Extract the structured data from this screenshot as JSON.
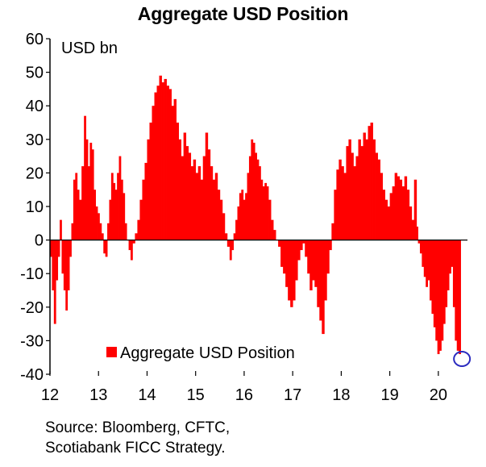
{
  "chart_data": {
    "type": "bar",
    "title": "Aggregate USD Position",
    "unit_label": "USD bn",
    "ylim": [
      -40,
      60
    ],
    "y_ticks": [
      60,
      50,
      40,
      30,
      20,
      10,
      0,
      -10,
      -20,
      -30,
      -40
    ],
    "xlim": [
      2012,
      2020.6
    ],
    "x_ticks": [
      {
        "value": 2012,
        "label": "12"
      },
      {
        "value": 2013,
        "label": "13"
      },
      {
        "value": 2014,
        "label": "14"
      },
      {
        "value": 2015,
        "label": "15"
      },
      {
        "value": 2016,
        "label": "16"
      },
      {
        "value": 2017,
        "label": "17"
      },
      {
        "value": 2018,
        "label": "18"
      },
      {
        "value": 2019,
        "label": "19"
      },
      {
        "value": 2020,
        "label": "20"
      }
    ],
    "legend": {
      "position": "bottom-left",
      "label": "Aggregate USD Position"
    },
    "series": [
      {
        "name": "Aggregate USD Position",
        "color": "#ff0000",
        "points": [
          [
            2012.0,
            -5
          ],
          [
            2012.04,
            -15
          ],
          [
            2012.08,
            -25
          ],
          [
            2012.12,
            -12
          ],
          [
            2012.16,
            -5
          ],
          [
            2012.2,
            6
          ],
          [
            2012.24,
            -10
          ],
          [
            2012.28,
            -15
          ],
          [
            2012.32,
            -21
          ],
          [
            2012.36,
            -15
          ],
          [
            2012.4,
            -5
          ],
          [
            2012.44,
            5
          ],
          [
            2012.48,
            18
          ],
          [
            2012.52,
            20
          ],
          [
            2012.56,
            15
          ],
          [
            2012.6,
            12
          ],
          [
            2012.65,
            22
          ],
          [
            2012.7,
            37
          ],
          [
            2012.74,
            30
          ],
          [
            2012.78,
            22
          ],
          [
            2012.82,
            29
          ],
          [
            2012.86,
            27
          ],
          [
            2012.9,
            15
          ],
          [
            2012.94,
            10
          ],
          [
            2012.98,
            8
          ],
          [
            2013.02,
            5
          ],
          [
            2013.06,
            2
          ],
          [
            2013.1,
            -4
          ],
          [
            2013.14,
            -5
          ],
          [
            2013.18,
            5
          ],
          [
            2013.22,
            12
          ],
          [
            2013.26,
            20
          ],
          [
            2013.3,
            17
          ],
          [
            2013.34,
            15
          ],
          [
            2013.38,
            20
          ],
          [
            2013.42,
            25
          ],
          [
            2013.46,
            18
          ],
          [
            2013.5,
            14
          ],
          [
            2013.54,
            5
          ],
          [
            2013.58,
            0
          ],
          [
            2013.62,
            -3
          ],
          [
            2013.66,
            -6
          ],
          [
            2013.7,
            -1
          ],
          [
            2013.75,
            2
          ],
          [
            2013.8,
            6
          ],
          [
            2013.85,
            12
          ],
          [
            2013.9,
            18
          ],
          [
            2013.95,
            23
          ],
          [
            2014.0,
            30
          ],
          [
            2014.05,
            35
          ],
          [
            2014.1,
            40
          ],
          [
            2014.15,
            44
          ],
          [
            2014.2,
            46
          ],
          [
            2014.25,
            49
          ],
          [
            2014.3,
            47
          ],
          [
            2014.35,
            48
          ],
          [
            2014.4,
            46
          ],
          [
            2014.45,
            45
          ],
          [
            2014.5,
            40
          ],
          [
            2014.55,
            42
          ],
          [
            2014.6,
            35
          ],
          [
            2014.65,
            30
          ],
          [
            2014.7,
            25
          ],
          [
            2014.75,
            32
          ],
          [
            2014.8,
            28
          ],
          [
            2014.85,
            26
          ],
          [
            2014.9,
            22
          ],
          [
            2014.95,
            24
          ],
          [
            2015.0,
            20
          ],
          [
            2015.05,
            22
          ],
          [
            2015.1,
            18
          ],
          [
            2015.15,
            25
          ],
          [
            2015.2,
            32
          ],
          [
            2015.25,
            27
          ],
          [
            2015.3,
            22
          ],
          [
            2015.35,
            18
          ],
          [
            2015.4,
            20
          ],
          [
            2015.45,
            15
          ],
          [
            2015.5,
            12
          ],
          [
            2015.55,
            8
          ],
          [
            2015.6,
            2
          ],
          [
            2015.65,
            -2
          ],
          [
            2015.7,
            -6
          ],
          [
            2015.74,
            -3
          ],
          [
            2015.78,
            2
          ],
          [
            2015.82,
            6
          ],
          [
            2015.86,
            10
          ],
          [
            2015.9,
            14
          ],
          [
            2015.94,
            15
          ],
          [
            2015.98,
            12
          ],
          [
            2016.02,
            14
          ],
          [
            2016.06,
            20
          ],
          [
            2016.1,
            25
          ],
          [
            2016.14,
            30
          ],
          [
            2016.18,
            29
          ],
          [
            2016.22,
            26
          ],
          [
            2016.26,
            24
          ],
          [
            2016.3,
            22
          ],
          [
            2016.34,
            18
          ],
          [
            2016.38,
            16
          ],
          [
            2016.42,
            17
          ],
          [
            2016.46,
            16
          ],
          [
            2016.5,
            12
          ],
          [
            2016.55,
            6
          ],
          [
            2016.6,
            3
          ],
          [
            2016.65,
            0
          ],
          [
            2016.7,
            -2
          ],
          [
            2016.75,
            -8
          ],
          [
            2016.8,
            -10
          ],
          [
            2016.85,
            -14
          ],
          [
            2016.9,
            -18
          ],
          [
            2016.95,
            -20
          ],
          [
            2017.0,
            -18
          ],
          [
            2017.05,
            -12
          ],
          [
            2017.1,
            -6
          ],
          [
            2017.15,
            -3
          ],
          [
            2017.2,
            -1
          ],
          [
            2017.25,
            -5
          ],
          [
            2017.3,
            -10
          ],
          [
            2017.35,
            -15
          ],
          [
            2017.4,
            -12
          ],
          [
            2017.45,
            -14
          ],
          [
            2017.5,
            -20
          ],
          [
            2017.55,
            -24
          ],
          [
            2017.6,
            -28
          ],
          [
            2017.65,
            -18
          ],
          [
            2017.7,
            -10
          ],
          [
            2017.75,
            -3
          ],
          [
            2017.8,
            5
          ],
          [
            2017.85,
            15
          ],
          [
            2017.9,
            21
          ],
          [
            2017.95,
            24
          ],
          [
            2018.0,
            22
          ],
          [
            2018.05,
            20
          ],
          [
            2018.1,
            28
          ],
          [
            2018.15,
            30
          ],
          [
            2018.2,
            26
          ],
          [
            2018.25,
            22
          ],
          [
            2018.3,
            25
          ],
          [
            2018.35,
            30
          ],
          [
            2018.4,
            28
          ],
          [
            2018.45,
            32
          ],
          [
            2018.5,
            30
          ],
          [
            2018.55,
            34
          ],
          [
            2018.6,
            35
          ],
          [
            2018.65,
            30
          ],
          [
            2018.7,
            26
          ],
          [
            2018.75,
            24
          ],
          [
            2018.8,
            20
          ],
          [
            2018.85,
            15
          ],
          [
            2018.9,
            12
          ],
          [
            2018.95,
            10
          ],
          [
            2019.0,
            14
          ],
          [
            2019.05,
            16
          ],
          [
            2019.1,
            20
          ],
          [
            2019.15,
            19
          ],
          [
            2019.2,
            18
          ],
          [
            2019.25,
            16
          ],
          [
            2019.3,
            19
          ],
          [
            2019.35,
            15
          ],
          [
            2019.4,
            10
          ],
          [
            2019.45,
            6
          ],
          [
            2019.5,
            18
          ],
          [
            2019.55,
            4
          ],
          [
            2019.58,
            -1
          ],
          [
            2019.62,
            -4
          ],
          [
            2019.66,
            -8
          ],
          [
            2019.7,
            -11
          ],
          [
            2019.74,
            -14
          ],
          [
            2019.78,
            -12
          ],
          [
            2019.82,
            -18
          ],
          [
            2019.86,
            -22
          ],
          [
            2019.9,
            -26
          ],
          [
            2019.94,
            -30
          ],
          [
            2019.98,
            -34
          ],
          [
            2020.02,
            -33
          ],
          [
            2020.06,
            -30
          ],
          [
            2020.1,
            -25
          ],
          [
            2020.14,
            -20
          ],
          [
            2020.18,
            -15
          ],
          [
            2020.22,
            -10
          ],
          [
            2020.26,
            -8
          ],
          [
            2020.3,
            -20
          ],
          [
            2020.34,
            -30
          ],
          [
            2020.38,
            -33
          ],
          [
            2020.42,
            -34
          ]
        ]
      }
    ],
    "highlight_marker": {
      "x": 2020.42,
      "y": -34,
      "color": "#2b2bbf"
    }
  },
  "source_lines": [
    "Source: Bloomberg, CFTC,",
    "Scotiabank FICC  Strategy."
  ]
}
